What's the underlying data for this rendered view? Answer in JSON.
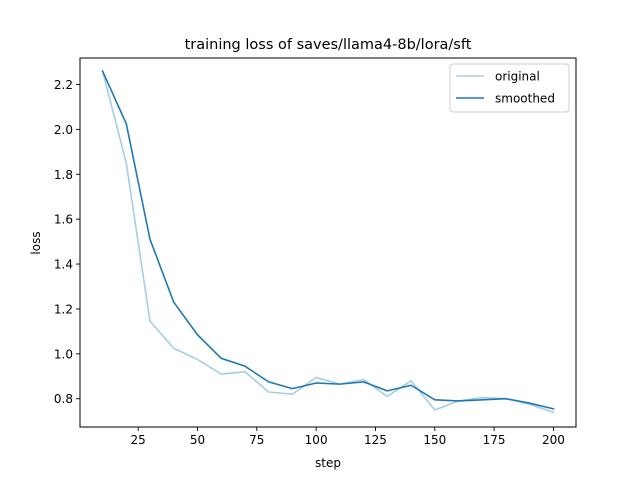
{
  "chart_data": {
    "type": "line",
    "title": "training loss of saves/llama4-8b/lora/sft",
    "xlabel": "step",
    "ylabel": "loss",
    "xlim": [
      0.5,
      209.5
    ],
    "ylim": [
      0.674,
      2.318
    ],
    "xticks": [
      25,
      50,
      75,
      100,
      125,
      150,
      175,
      200
    ],
    "yticks": [
      0.8,
      1.0,
      1.2,
      1.4,
      1.6,
      1.8,
      2.0,
      2.2
    ],
    "xtick_labels": [
      "25",
      "50",
      "75",
      "100",
      "125",
      "150",
      "175",
      "200"
    ],
    "ytick_labels": [
      "0.8",
      "1.0",
      "1.2",
      "1.4",
      "1.6",
      "1.8",
      "2.0",
      "2.2"
    ],
    "grid": false,
    "legend_position": "top-right",
    "x": [
      10,
      20,
      30,
      40,
      50,
      60,
      70,
      80,
      90,
      100,
      110,
      120,
      130,
      140,
      150,
      160,
      170,
      180,
      190,
      200
    ],
    "series": [
      {
        "name": "original",
        "color": "#a6cee3",
        "values": [
          2.26,
          1.85,
          1.145,
          1.025,
          0.975,
          0.91,
          0.92,
          0.83,
          0.82,
          0.895,
          0.865,
          0.885,
          0.81,
          0.88,
          0.75,
          0.79,
          0.805,
          0.8,
          0.775,
          0.74
        ]
      },
      {
        "name": "smoothed",
        "color": "#1f78b4",
        "values": [
          2.26,
          2.025,
          1.51,
          1.23,
          1.085,
          0.98,
          0.945,
          0.875,
          0.845,
          0.87,
          0.865,
          0.875,
          0.835,
          0.86,
          0.795,
          0.79,
          0.795,
          0.8,
          0.78,
          0.755
        ]
      }
    ]
  }
}
